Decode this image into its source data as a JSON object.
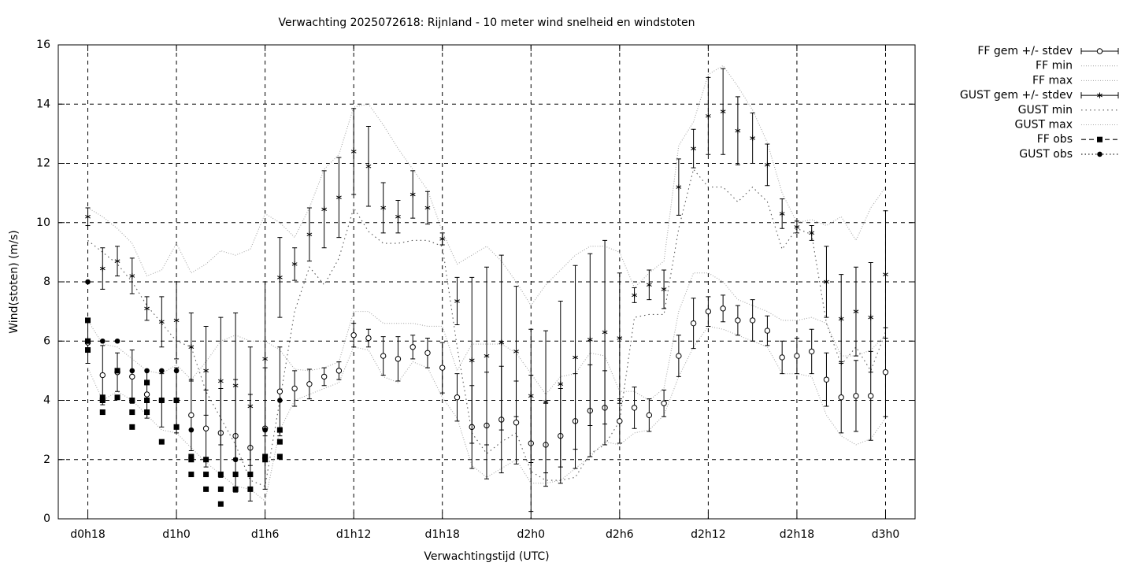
{
  "chart_data": {
    "type": "errorbar",
    "title": "Verwachting 2025072618: Rijnland - 10 meter wind snelheid en windstoten",
    "xlabel": "Verwachtingstijd (UTC)",
    "ylabel": "Wind(stoten) (m/s)",
    "xlim": [
      16,
      74
    ],
    "ylim": [
      0,
      16
    ],
    "xticks": [
      {
        "value": 18,
        "label": "d0h18"
      },
      {
        "value": 24,
        "label": "d1h0"
      },
      {
        "value": 30,
        "label": "d1h6"
      },
      {
        "value": 36,
        "label": "d1h12"
      },
      {
        "value": 42,
        "label": "d1h18"
      },
      {
        "value": 48,
        "label": "d2h0"
      },
      {
        "value": 54,
        "label": "d2h6"
      },
      {
        "value": 60,
        "label": "d2h12"
      },
      {
        "value": 66,
        "label": "d2h18"
      },
      {
        "value": 72,
        "label": "d3h0"
      }
    ],
    "yticks": [
      0,
      2,
      4,
      6,
      8,
      10,
      12,
      14,
      16
    ],
    "grid": true,
    "legend": "outside-top-right",
    "x": [
      18,
      19,
      20,
      21,
      22,
      23,
      24,
      25,
      26,
      27,
      28,
      29,
      30,
      31,
      32,
      33,
      34,
      35,
      36,
      37,
      38,
      39,
      40,
      41,
      42,
      43,
      44,
      45,
      46,
      47,
      48,
      49,
      50,
      51,
      52,
      53,
      54,
      55,
      56,
      57,
      58,
      59,
      60,
      61,
      62,
      63,
      64,
      65,
      66,
      67,
      68,
      69,
      70,
      71,
      72
    ],
    "series": [
      {
        "name": "FF gem +/- stdev",
        "color": "#000000",
        "style": "errorbar",
        "marker": "circle",
        "values": [
          5.95,
          4.85,
          4.95,
          4.8,
          4.2,
          4.0,
          4.0,
          3.5,
          3.05,
          2.9,
          2.8,
          2.4,
          3.05,
          4.3,
          4.4,
          4.55,
          4.8,
          5.0,
          6.2,
          6.1,
          5.5,
          5.4,
          5.8,
          5.6,
          5.1,
          4.1,
          3.1,
          3.15,
          3.35,
          3.25,
          2.55,
          2.5,
          2.8,
          3.3,
          3.65,
          3.75,
          3.3,
          3.75,
          3.5,
          3.9,
          5.5,
          6.6,
          7.0,
          7.1,
          6.7,
          6.7,
          6.35,
          5.45,
          5.5,
          5.65,
          4.7,
          4.1,
          4.15,
          4.15,
          4.95
        ],
        "errors": [
          0.7,
          1.0,
          0.65,
          0.9,
          0.8,
          0.9,
          1.1,
          1.2,
          1.3,
          1.5,
          1.9,
          1.8,
          2.05,
          1.5,
          0.6,
          0.5,
          0.3,
          0.3,
          0.4,
          0.3,
          0.65,
          0.75,
          0.4,
          0.5,
          0.85,
          0.8,
          1.4,
          1.8,
          1.8,
          1.4,
          2.3,
          1.4,
          1.6,
          1.6,
          1.55,
          1.25,
          0.75,
          0.7,
          0.55,
          0.45,
          0.7,
          0.85,
          0.5,
          0.45,
          0.5,
          0.7,
          0.5,
          0.55,
          0.6,
          0.75,
          0.9,
          1.2,
          1.2,
          1.5,
          1.5
        ]
      },
      {
        "name": "FF min",
        "color": "#aaaaaa",
        "style": "line",
        "dash": "1 2",
        "values": [
          5.1,
          4.0,
          4.3,
          4.0,
          3.5,
          3.0,
          2.9,
          2.4,
          1.9,
          1.5,
          1.1,
          1.0,
          0.6,
          3.0,
          4.0,
          4.2,
          4.4,
          4.6,
          5.8,
          5.7,
          4.8,
          4.6,
          5.3,
          5.1,
          4.1,
          3.4,
          1.8,
          1.4,
          1.7,
          2.0,
          1.2,
          1.2,
          1.3,
          1.7,
          2.1,
          2.6,
          2.5,
          2.9,
          3.0,
          3.5,
          4.8,
          5.8,
          6.5,
          6.4,
          6.2,
          6.0,
          5.8,
          4.9,
          4.9,
          4.8,
          3.5,
          2.8,
          2.5,
          2.7,
          3.4
        ]
      },
      {
        "name": "FF max",
        "color": "#aaaaaa",
        "style": "line",
        "dash": "1 2",
        "values": [
          6.7,
          5.9,
          5.8,
          5.4,
          5.0,
          4.9,
          5.2,
          4.7,
          5.3,
          6.0,
          6.2,
          6.0,
          6.0,
          5.7,
          5.05,
          5.0,
          5.1,
          5.3,
          7.0,
          7.0,
          6.6,
          6.6,
          6.6,
          6.5,
          6.5,
          5.0,
          5.9,
          5.9,
          5.9,
          5.6,
          4.9,
          4.2,
          4.8,
          4.9,
          5.6,
          5.5,
          4.3,
          4.3,
          4.0,
          4.4,
          7.0,
          8.3,
          8.3,
          8.0,
          7.4,
          7.2,
          7.0,
          6.7,
          6.7,
          6.8,
          6.6,
          5.5,
          5.5,
          5.7,
          6.2
        ]
      },
      {
        "name": "GUST gem +/- stdev",
        "color": "#000000",
        "style": "errorbar",
        "marker": "star",
        "values": [
          10.2,
          8.45,
          8.7,
          8.2,
          7.1,
          6.65,
          6.7,
          5.8,
          5.0,
          4.65,
          4.5,
          3.8,
          5.4,
          8.15,
          8.6,
          9.6,
          10.45,
          10.85,
          12.4,
          11.9,
          10.5,
          10.2,
          10.95,
          10.5,
          9.45,
          7.35,
          5.35,
          5.5,
          5.95,
          5.65,
          4.15,
          3.95,
          4.55,
          5.45,
          6.05,
          6.3,
          6.1,
          7.55,
          7.9,
          7.75,
          11.2,
          12.5,
          13.6,
          13.75,
          13.1,
          12.85,
          11.95,
          10.3,
          9.85,
          9.65,
          8.0,
          6.75,
          7.0,
          6.8,
          8.25
        ],
        "errors": [
          0.3,
          0.7,
          0.5,
          0.6,
          0.4,
          0.85,
          1.3,
          1.15,
          1.5,
          2.15,
          2.45,
          2.0,
          2.6,
          1.35,
          0.55,
          0.9,
          1.3,
          1.35,
          1.45,
          1.35,
          0.85,
          0.55,
          0.8,
          0.55,
          0.2,
          0.8,
          2.8,
          3.0,
          2.95,
          2.2,
          2.25,
          2.4,
          2.8,
          3.1,
          2.9,
          3.1,
          2.2,
          0.25,
          0.5,
          0.65,
          0.95,
          0.65,
          1.3,
          1.45,
          1.15,
          0.85,
          0.7,
          0.5,
          0.2,
          0.25,
          1.2,
          1.5,
          1.5,
          1.85,
          2.15
        ]
      },
      {
        "name": "GUST min",
        "color": "#555555",
        "style": "line",
        "dash": "1.5 4",
        "values": [
          9.4,
          9.0,
          8.6,
          8.0,
          7.2,
          6.6,
          6.0,
          5.8,
          4.3,
          3.4,
          2.5,
          1.3,
          1.1,
          4.0,
          7.0,
          8.5,
          7.9,
          8.8,
          10.5,
          9.7,
          9.3,
          9.3,
          9.4,
          9.4,
          9.2,
          5.8,
          2.9,
          2.2,
          2.6,
          2.9,
          1.6,
          1.3,
          1.3,
          1.4,
          2.2,
          2.5,
          3.3,
          6.8,
          6.9,
          6.9,
          9.8,
          11.8,
          11.2,
          11.2,
          10.7,
          11.2,
          10.7,
          9.1,
          9.8,
          9.6,
          6.6,
          5.2,
          5.8,
          5.0,
          6.3
        ]
      },
      {
        "name": "GUST max",
        "color": "#aaaaaa",
        "style": "line",
        "dash": "1 2",
        "values": [
          10.5,
          10.2,
          9.8,
          9.3,
          8.2,
          8.4,
          9.3,
          8.3,
          8.6,
          9.05,
          8.9,
          9.1,
          10.3,
          10.0,
          9.5,
          10.5,
          11.8,
          12.3,
          13.9,
          14.0,
          13.3,
          12.5,
          11.8,
          11.1,
          9.7,
          8.6,
          8.9,
          9.2,
          8.7,
          8.0,
          7.2,
          7.9,
          8.4,
          8.9,
          9.2,
          9.2,
          9.0,
          7.8,
          8.3,
          8.7,
          12.6,
          13.4,
          15.0,
          15.3,
          14.6,
          13.8,
          12.7,
          11.0,
          10.0,
          10.1,
          9.9,
          10.2,
          9.4,
          10.5,
          11.2
        ]
      },
      {
        "name": "FF obs",
        "color": "#000000",
        "style": "points",
        "marker": "square",
        "dash": "6 4",
        "x": [
          18,
          18,
          18,
          19,
          19,
          19,
          20,
          20,
          21,
          21,
          21,
          22,
          22,
          22,
          23,
          23,
          24,
          24,
          25,
          25,
          25,
          26,
          26,
          26,
          27,
          27,
          27,
          28,
          28,
          29,
          29,
          30,
          30,
          31,
          31,
          31
        ],
        "values": [
          6.7,
          6.0,
          5.7,
          4.1,
          4.0,
          3.6,
          5.0,
          4.1,
          4.0,
          3.6,
          3.1,
          4.6,
          4.0,
          3.6,
          4.0,
          2.6,
          4.0,
          3.1,
          2.1,
          2.0,
          1.5,
          2.0,
          1.5,
          1.0,
          1.5,
          1.0,
          0.5,
          1.5,
          1.0,
          1.5,
          1.0,
          2.1,
          2.0,
          3.0,
          2.6,
          2.1
        ]
      },
      {
        "name": "GUST obs",
        "color": "#000000",
        "style": "points",
        "marker": "dot",
        "dash": "1.5 3",
        "x": [
          18,
          19,
          20,
          21,
          22,
          23,
          24,
          25,
          26,
          28,
          30,
          31
        ],
        "values": [
          8,
          6,
          6,
          5,
          5,
          5,
          5,
          3,
          2,
          2,
          3,
          4
        ]
      }
    ]
  }
}
